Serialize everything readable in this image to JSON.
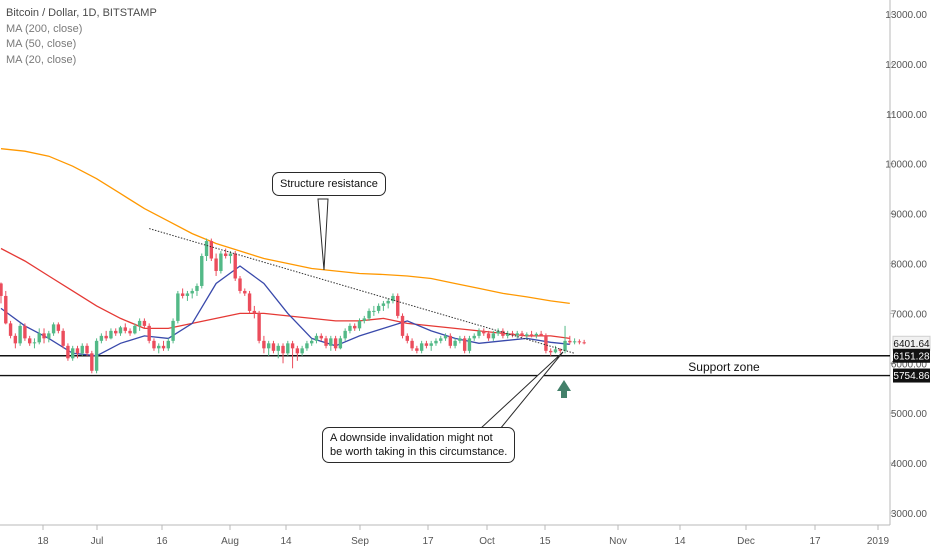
{
  "legend": {
    "title": "Bitcoin / Dollar, 1D, BITSTAMP",
    "ma200": "MA (200, close)",
    "ma50": "MA (50, close)",
    "ma20": "MA (20, close)"
  },
  "annotations": {
    "resistance": "Structure resistance",
    "support": "Support zone",
    "note_line1": "A downside invalidation might not",
    "note_line2": "be worth taking in this circumstance."
  },
  "price_tags": [
    "6401.64",
    "6151.28",
    "5754.86"
  ],
  "colors": {
    "up": "#53b987",
    "down": "#eb4d5c",
    "ma200": "#ff9800",
    "ma50": "#e53935",
    "ma20": "#3949ab",
    "arrow": "#43806a"
  },
  "chart_data": {
    "type": "candlestick",
    "title": "Bitcoin / Dollar, 1D, BITSTAMP",
    "x_ticks": [
      "18",
      "Jul",
      "16",
      "Aug",
      "14",
      "Sep",
      "17",
      "Oct",
      "15",
      "Nov",
      "14",
      "Dec",
      "17",
      "2019"
    ],
    "y_ticks": [
      3000,
      4000,
      5000,
      6000,
      7000,
      8000,
      9000,
      10000,
      11000,
      12000,
      13000
    ],
    "ylim": [
      2700,
      13200
    ],
    "ohlc": [
      [
        7600,
        7620,
        7200,
        7350
      ],
      [
        7350,
        7450,
        6780,
        6800
      ],
      [
        6800,
        6850,
        6500,
        6550
      ],
      [
        6550,
        6600,
        6300,
        6400
      ],
      [
        6400,
        6800,
        6350,
        6750
      ],
      [
        6750,
        6800,
        6450,
        6500
      ],
      [
        6500,
        6550,
        6350,
        6400
      ],
      [
        6400,
        6500,
        6300,
        6420
      ],
      [
        6420,
        6700,
        6380,
        6600
      ],
      [
        6600,
        6700,
        6400,
        6500
      ],
      [
        6500,
        6650,
        6420,
        6600
      ],
      [
        6600,
        6820,
        6550,
        6780
      ],
      [
        6780,
        6820,
        6600,
        6650
      ],
      [
        6650,
        6700,
        6300,
        6350
      ],
      [
        6350,
        6400,
        6050,
        6100
      ],
      [
        6100,
        6350,
        6050,
        6300
      ],
      [
        6300,
        6350,
        6100,
        6200
      ],
      [
        6200,
        6400,
        6150,
        6350
      ],
      [
        6350,
        6400,
        6150,
        6200
      ],
      [
        6200,
        6250,
        5800,
        5850
      ],
      [
        5850,
        6500,
        5800,
        6450
      ],
      [
        6450,
        6600,
        6400,
        6550
      ],
      [
        6550,
        6650,
        6450,
        6500
      ],
      [
        6500,
        6700,
        6480,
        6650
      ],
      [
        6650,
        6700,
        6550,
        6600
      ],
      [
        6600,
        6750,
        6550,
        6720
      ],
      [
        6720,
        6800,
        6600,
        6650
      ],
      [
        6650,
        6700,
        6550,
        6600
      ],
      [
        6600,
        6800,
        6580,
        6750
      ],
      [
        6750,
        6900,
        6650,
        6850
      ],
      [
        6850,
        6900,
        6700,
        6750
      ],
      [
        6750,
        6800,
        6400,
        6450
      ],
      [
        6450,
        6500,
        6250,
        6300
      ],
      [
        6300,
        6400,
        6200,
        6350
      ],
      [
        6350,
        6450,
        6250,
        6300
      ],
      [
        6300,
        6500,
        6250,
        6450
      ],
      [
        6450,
        6900,
        6400,
        6850
      ],
      [
        6850,
        7450,
        6800,
        7400
      ],
      [
        7400,
        7500,
        7300,
        7350
      ],
      [
        7350,
        7450,
        7250,
        7400
      ],
      [
        7400,
        7500,
        7300,
        7450
      ],
      [
        7450,
        7600,
        7350,
        7550
      ],
      [
        7550,
        8200,
        7500,
        8150
      ],
      [
        8150,
        8500,
        8050,
        8450
      ],
      [
        8450,
        8500,
        8050,
        8100
      ],
      [
        8100,
        8200,
        7750,
        7850
      ],
      [
        7850,
        8250,
        7800,
        8200
      ],
      [
        8200,
        8300,
        8100,
        8150
      ],
      [
        8150,
        8250,
        8000,
        8200
      ],
      [
        8200,
        8250,
        7650,
        7700
      ],
      [
        7700,
        7750,
        7400,
        7450
      ],
      [
        7450,
        7500,
        7350,
        7400
      ],
      [
        7400,
        7450,
        7000,
        7050
      ],
      [
        7050,
        7150,
        6900,
        7000
      ],
      [
        7000,
        7050,
        6400,
        6450
      ],
      [
        6450,
        6550,
        6200,
        6300
      ],
      [
        6300,
        6450,
        6150,
        6400
      ],
      [
        6400,
        6450,
        6200,
        6250
      ],
      [
        6250,
        6400,
        6100,
        6350
      ],
      [
        6350,
        6400,
        6000,
        6200
      ],
      [
        6200,
        6450,
        6150,
        6400
      ],
      [
        6400,
        6450,
        5900,
        6300
      ],
      [
        6300,
        6350,
        6050,
        6200
      ],
      [
        6200,
        6350,
        6150,
        6300
      ],
      [
        6300,
        6450,
        6250,
        6400
      ],
      [
        6400,
        6500,
        6350,
        6450
      ],
      [
        6450,
        6600,
        6400,
        6550
      ],
      [
        6550,
        6600,
        6450,
        6500
      ],
      [
        6500,
        6550,
        6300,
        6350
      ],
      [
        6350,
        6550,
        6250,
        6500
      ],
      [
        6500,
        6550,
        6250,
        6300
      ],
      [
        6300,
        6550,
        6280,
        6500
      ],
      [
        6500,
        6700,
        6450,
        6650
      ],
      [
        6650,
        6800,
        6600,
        6750
      ],
      [
        6750,
        6800,
        6650,
        6700
      ],
      [
        6700,
        6900,
        6650,
        6850
      ],
      [
        6850,
        6950,
        6800,
        6900
      ],
      [
        6900,
        7100,
        6850,
        7050
      ],
      [
        7050,
        7150,
        6950,
        7050
      ],
      [
        7050,
        7200,
        7000,
        7150
      ],
      [
        7150,
        7250,
        7050,
        7200
      ],
      [
        7200,
        7300,
        7100,
        7250
      ],
      [
        7250,
        7400,
        7200,
        7350
      ],
      [
        7350,
        7400,
        6900,
        6950
      ],
      [
        6950,
        7000,
        6500,
        6550
      ],
      [
        6550,
        6600,
        6400,
        6450
      ],
      [
        6450,
        6500,
        6250,
        6300
      ],
      [
        6300,
        6350,
        6200,
        6250
      ],
      [
        6250,
        6450,
        6200,
        6400
      ],
      [
        6400,
        6450,
        6300,
        6350
      ],
      [
        6350,
        6450,
        6250,
        6400
      ],
      [
        6400,
        6500,
        6350,
        6450
      ],
      [
        6450,
        6550,
        6400,
        6500
      ],
      [
        6500,
        6600,
        6450,
        6550
      ],
      [
        6550,
        6600,
        6300,
        6350
      ],
      [
        6350,
        6500,
        6300,
        6450
      ],
      [
        6450,
        6550,
        6400,
        6500
      ],
      [
        6500,
        6550,
        6200,
        6250
      ],
      [
        6250,
        6550,
        6200,
        6500
      ],
      [
        6500,
        6600,
        6450,
        6550
      ],
      [
        6550,
        6700,
        6500,
        6650
      ],
      [
        6650,
        6700,
        6550,
        6600
      ],
      [
        6600,
        6650,
        6450,
        6500
      ],
      [
        6500,
        6650,
        6450,
        6600
      ],
      [
        6600,
        6700,
        6550,
        6650
      ],
      [
        6650,
        6700,
        6500,
        6550
      ],
      [
        6550,
        6650,
        6500,
        6600
      ],
      [
        6600,
        6650,
        6520,
        6560
      ],
      [
        6560,
        6650,
        6500,
        6600
      ],
      [
        6600,
        6650,
        6520,
        6550
      ],
      [
        6550,
        6620,
        6500,
        6580
      ],
      [
        6580,
        6650,
        6520,
        6560
      ],
      [
        6560,
        6620,
        6500,
        6590
      ],
      [
        6590,
        6650,
        6540,
        6560
      ],
      [
        6560,
        6600,
        6200,
        6250
      ],
      [
        6250,
        6300,
        6150,
        6220
      ],
      [
        6220,
        6350,
        6200,
        6280
      ],
      [
        6280,
        6300,
        6200,
        6250
      ],
      [
        6250,
        6750,
        6200,
        6450
      ],
      [
        6450,
        6550,
        6380,
        6420
      ],
      [
        6420,
        6500,
        6380,
        6440
      ],
      [
        6440,
        6480,
        6380,
        6420
      ],
      [
        6420,
        6470,
        6380,
        6400
      ]
    ],
    "ma200": [
      [
        0,
        10300
      ],
      [
        5,
        10250
      ],
      [
        10,
        10150
      ],
      [
        15,
        9950
      ],
      [
        20,
        9700
      ],
      [
        25,
        9400
      ],
      [
        30,
        9100
      ],
      [
        35,
        8850
      ],
      [
        40,
        8600
      ],
      [
        45,
        8400
      ],
      [
        50,
        8250
      ],
      [
        55,
        8100
      ],
      [
        60,
        8000
      ],
      [
        65,
        7900
      ],
      [
        70,
        7850
      ],
      [
        75,
        7800
      ],
      [
        80,
        7780
      ],
      [
        85,
        7750
      ],
      [
        90,
        7700
      ],
      [
        95,
        7600
      ],
      [
        100,
        7500
      ],
      [
        105,
        7400
      ],
      [
        110,
        7330
      ],
      [
        115,
        7250
      ],
      [
        119,
        7200
      ]
    ],
    "ma50": [
      [
        0,
        8300
      ],
      [
        5,
        8050
      ],
      [
        10,
        7750
      ],
      [
        15,
        7450
      ],
      [
        20,
        7150
      ],
      [
        25,
        6900
      ],
      [
        30,
        6700
      ],
      [
        35,
        6700
      ],
      [
        40,
        6800
      ],
      [
        45,
        6900
      ],
      [
        50,
        7000
      ],
      [
        55,
        7000
      ],
      [
        60,
        6950
      ],
      [
        65,
        6900
      ],
      [
        70,
        6850
      ],
      [
        75,
        6850
      ],
      [
        80,
        6900
      ],
      [
        85,
        6800
      ],
      [
        90,
        6750
      ],
      [
        95,
        6700
      ],
      [
        100,
        6650
      ],
      [
        105,
        6600
      ],
      [
        110,
        6550
      ],
      [
        115,
        6550
      ],
      [
        119,
        6500
      ]
    ],
    "ma20": [
      [
        0,
        7100
      ],
      [
        5,
        6750
      ],
      [
        10,
        6500
      ],
      [
        15,
        6200
      ],
      [
        20,
        6150
      ],
      [
        25,
        6400
      ],
      [
        30,
        6550
      ],
      [
        35,
        6500
      ],
      [
        40,
        6800
      ],
      [
        45,
        7600
      ],
      [
        50,
        7950
      ],
      [
        55,
        7600
      ],
      [
        60,
        7000
      ],
      [
        65,
        6500
      ],
      [
        70,
        6350
      ],
      [
        75,
        6550
      ],
      [
        80,
        6700
      ],
      [
        85,
        6850
      ],
      [
        90,
        6650
      ],
      [
        95,
        6500
      ],
      [
        100,
        6400
      ],
      [
        105,
        6450
      ],
      [
        110,
        6500
      ],
      [
        115,
        6420
      ],
      [
        119,
        6380
      ]
    ],
    "resistance_line": [
      [
        31,
        8700
      ],
      [
        120,
        6200
      ]
    ],
    "support_zone": [
      6151.28,
      5754.86
    ],
    "last_price": 6401.64
  }
}
